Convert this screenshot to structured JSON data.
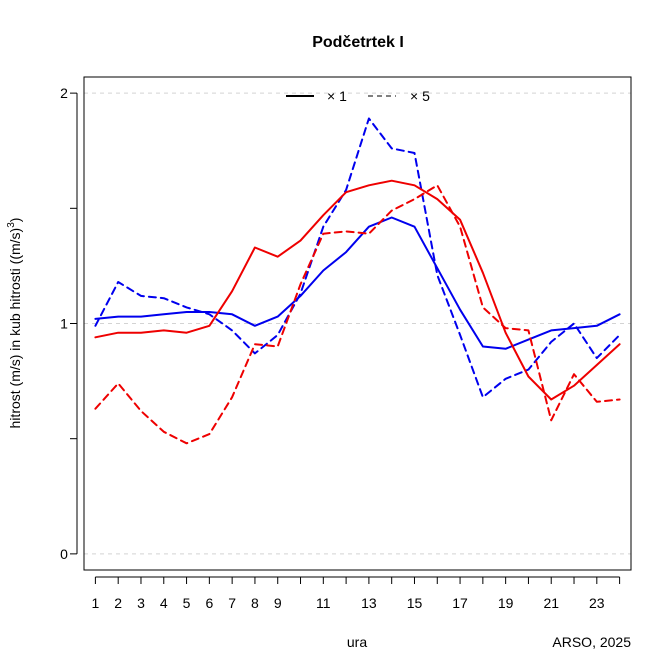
{
  "chart_data": {
    "type": "line",
    "title": "Podčetrtek I",
    "xlabel": "ura",
    "ylabel": "hitrost (m/s) in kub hitrosti ((m/s)",
    "ylabel_sup": "3",
    "ylabel_close": ")",
    "source": "ARSO, 2025",
    "xlim": [
      0.5,
      24.5
    ],
    "ylim": [
      -0.07,
      2.07
    ],
    "x_ticks": [
      1,
      2,
      3,
      4,
      5,
      6,
      7,
      8,
      9,
      11,
      13,
      15,
      17,
      19,
      21,
      23
    ],
    "x_ticks_minor": [
      10,
      12,
      14,
      16,
      18,
      20,
      22,
      24
    ],
    "y_ticks": [
      0,
      1,
      2
    ],
    "y_ticks_minor": [
      0.5,
      1.5
    ],
    "y_tick_labels": [
      "0",
      "1",
      "2"
    ],
    "grid": "horizontal dashed",
    "legend_position": "top",
    "legend": [
      {
        "label": "× 1",
        "dash": "solid"
      },
      {
        "label": "× 5",
        "dash": "dashed"
      }
    ],
    "series": [
      {
        "color": "#0000ee",
        "dash": "solid",
        "x": [
          1,
          2,
          3,
          4,
          5,
          6,
          7,
          8,
          9,
          10,
          11,
          12,
          13,
          14,
          15,
          16,
          17,
          18,
          19,
          20,
          21,
          22,
          23,
          24
        ],
        "values": [
          1.02,
          1.03,
          1.03,
          1.04,
          1.05,
          1.05,
          1.04,
          0.99,
          1.03,
          1.12,
          1.23,
          1.31,
          1.42,
          1.46,
          1.42,
          1.24,
          1.06,
          0.9,
          0.89,
          0.93,
          0.97,
          0.98,
          0.99,
          1.04
        ]
      },
      {
        "color": "#0000ee",
        "dash": "dashed",
        "x": [
          1,
          2,
          3,
          4,
          5,
          6,
          7,
          8,
          9,
          10,
          11,
          12,
          13,
          14,
          15,
          16,
          17,
          18,
          19,
          20,
          21,
          22,
          23,
          24
        ],
        "values": [
          0.99,
          1.18,
          1.12,
          1.11,
          1.07,
          1.04,
          0.97,
          0.87,
          0.95,
          1.13,
          1.42,
          1.58,
          1.89,
          1.76,
          1.74,
          1.21,
          0.95,
          0.68,
          0.76,
          0.8,
          0.92,
          1.0,
          0.85,
          0.95
        ]
      },
      {
        "color": "#ee0000",
        "dash": "solid",
        "x": [
          1,
          2,
          3,
          4,
          5,
          6,
          7,
          8,
          9,
          10,
          11,
          12,
          13,
          14,
          15,
          16,
          17,
          18,
          19,
          20,
          21,
          22,
          23,
          24
        ],
        "values": [
          0.94,
          0.96,
          0.96,
          0.97,
          0.96,
          0.99,
          1.14,
          1.33,
          1.29,
          1.36,
          1.47,
          1.57,
          1.6,
          1.62,
          1.6,
          1.54,
          1.45,
          1.22,
          0.96,
          0.77,
          0.67,
          0.73,
          0.82,
          0.91
        ]
      },
      {
        "color": "#ee0000",
        "dash": "dashed",
        "x": [
          1,
          2,
          3,
          4,
          5,
          6,
          7,
          8,
          9,
          10,
          11,
          12,
          13,
          14,
          15,
          16,
          17,
          18,
          19,
          20,
          21,
          22,
          23,
          24
        ],
        "values": [
          0.63,
          0.74,
          0.62,
          0.53,
          0.48,
          0.52,
          0.68,
          0.91,
          0.9,
          1.17,
          1.39,
          1.4,
          1.39,
          1.49,
          1.54,
          1.6,
          1.42,
          1.07,
          0.98,
          0.97,
          0.58,
          0.78,
          0.66,
          0.67
        ]
      }
    ]
  }
}
